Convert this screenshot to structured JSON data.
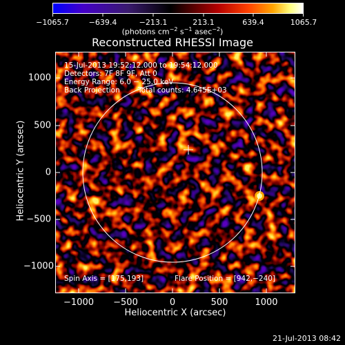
{
  "colorbar": {
    "tick_labels": [
      "−1065.7",
      "−639.4",
      "−213.1",
      "213.1",
      "639.4",
      "1065.7"
    ],
    "units_text": "(photons cm",
    "units_sup1": "−2",
    "units_mid1": " s",
    "units_sup2": "−1",
    "units_mid2": " asec",
    "units_sup3": "−2",
    "units_end": ")",
    "colors": [
      "#0000ff",
      "#4400c8",
      "#3a1a6e",
      "#000000",
      "#3a0000",
      "#b40000",
      "#ff4000",
      "#ffa500",
      "#ffff80",
      "#ffffff"
    ]
  },
  "plot": {
    "title": "Reconstructed RHESSI Image",
    "xlabel": "Heliocentric X (arcsec)",
    "ylabel": "Heliocentric Y (arcsec)",
    "x_ticks": [
      "−1000",
      "−500",
      "0",
      "500",
      "1000"
    ],
    "y_ticks": [
      "1000",
      "500",
      "0",
      "−500",
      "−1000"
    ],
    "annotations": {
      "time_range": "15-Jul-2013 19:52:12.000 to 19:54:12.000",
      "detectors": "Detectors: 7F 8F 9F, Att 0",
      "energy": "Energy Range: 6.0 − 25.0 keV",
      "method": "Back Projection",
      "counts": "Total counts: 4.645E+03",
      "spin_axis": "Spin Axis = [175,193]",
      "flare_position": "Flare Position = [942,−240]"
    }
  },
  "footer_date": "21-Jul-2013 08:42"
}
